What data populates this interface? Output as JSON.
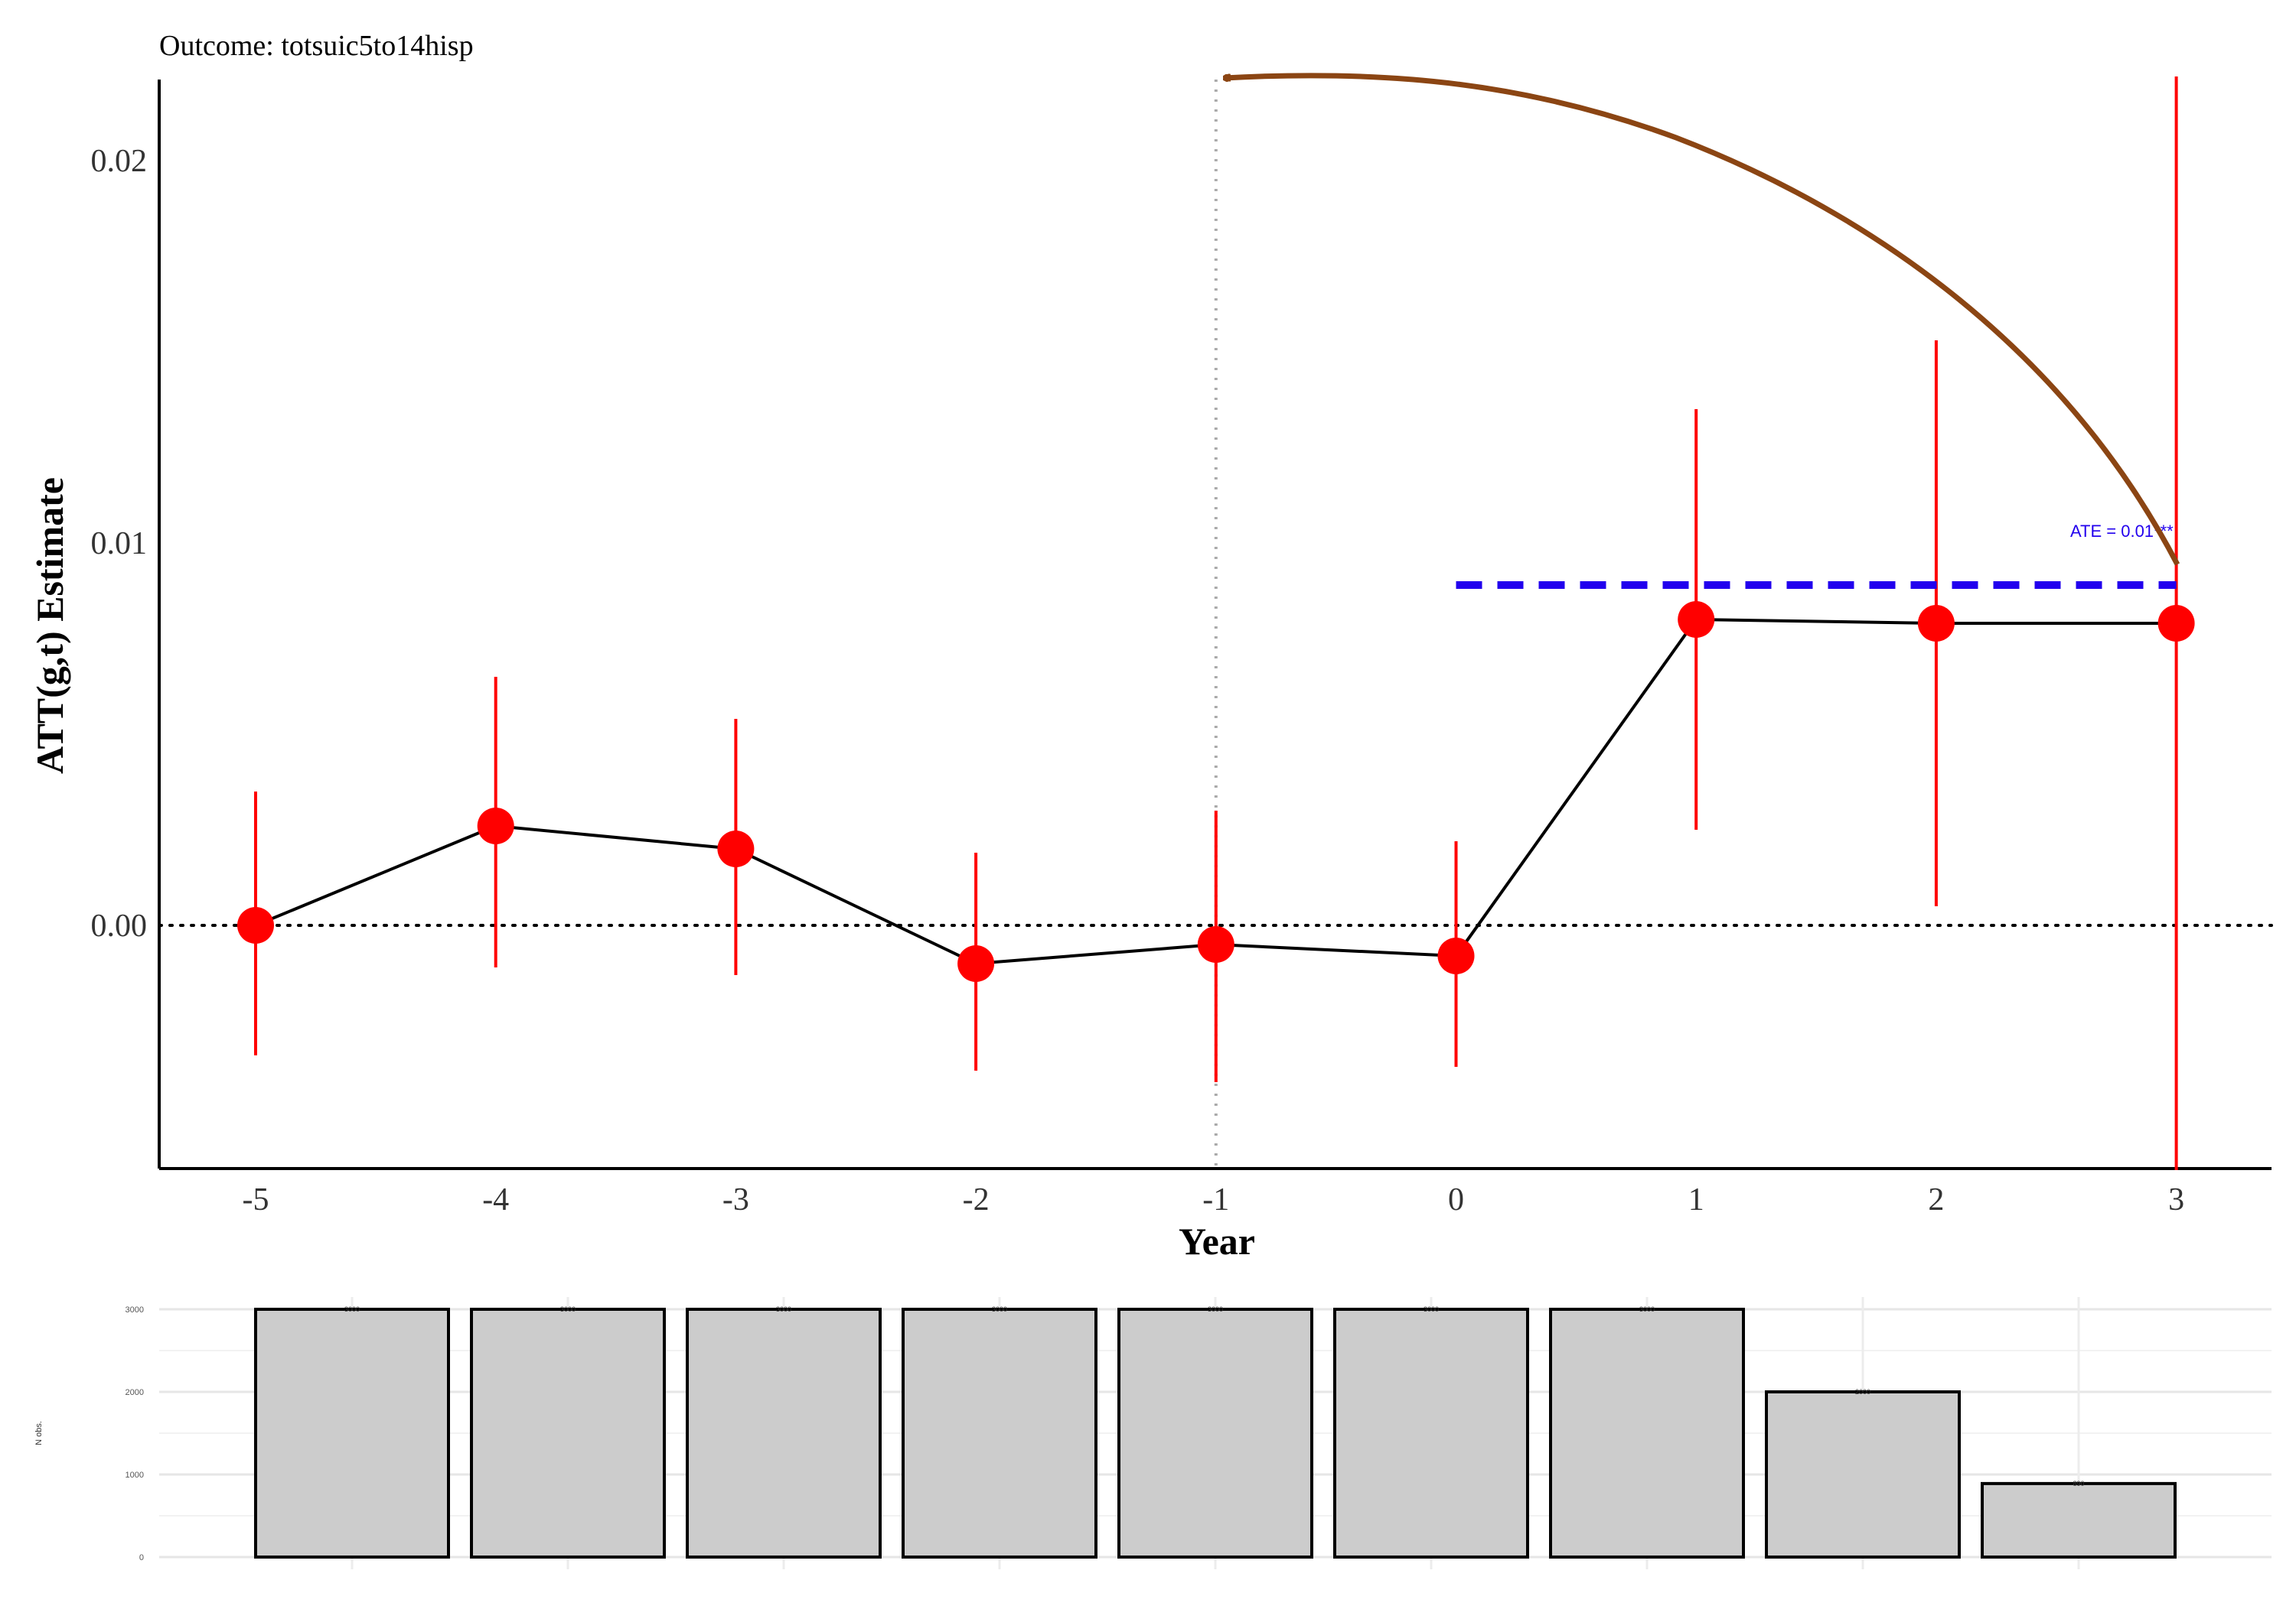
{
  "chart_data": [
    {
      "type": "line",
      "subtitle": "Outcome: totsuic5to14hisp",
      "xlabel": "Year",
      "ylabel": "ATT(g,t) Estimate",
      "x": [
        -5,
        -4,
        -3,
        -2,
        -1,
        0,
        1,
        2,
        3
      ],
      "x_ticks": [
        "-5",
        "-4",
        "-3",
        "-2",
        "-1",
        "0",
        "1",
        "2",
        "3"
      ],
      "y_ticks": [
        "0.00",
        "0.01",
        "0.02"
      ],
      "ylim": [
        -0.0064,
        0.0222
      ],
      "series": [
        {
          "estimate": [
            0.0,
            0.0026,
            0.002,
            -0.001,
            -0.0005,
            -0.0008,
            0.008,
            0.0079,
            0.0079
          ],
          "ci_lower": [
            -0.0034,
            -0.0011,
            -0.0013,
            -0.0038,
            -0.0041,
            -0.0037,
            0.0025,
            0.0005,
            -0.0064
          ],
          "ci_upper": [
            0.0035,
            0.0065,
            0.0054,
            0.0019,
            0.003,
            0.0022,
            0.0135,
            0.0153,
            0.0222
          ]
        }
      ],
      "ate": {
        "label": "ATE = 0.01***",
        "value": 0.0089,
        "x_start": 0,
        "x_end": 3
      },
      "reference_line_x": -1,
      "zero_line_y": 0,
      "colors": {
        "points": "#ff0000",
        "ci": "#ff0000",
        "line": "#000000",
        "ate": "#2200ee",
        "arrow": "#8b4513"
      },
      "grid": false
    },
    {
      "type": "bar",
      "ylabel": "N obs.",
      "x": [
        -5,
        -4,
        -3,
        -2,
        -1,
        0,
        1,
        2,
        3
      ],
      "values": [
        3000,
        3000,
        3000,
        3000,
        3000,
        3000,
        3000,
        2000,
        890
      ],
      "value_labels": [
        "3000",
        "3000",
        "3000",
        "3000",
        "3000",
        "3000",
        "3000",
        "2000",
        "890"
      ],
      "y_ticks": [
        "0",
        "1000",
        "2000",
        "3000"
      ],
      "ylim": [
        0,
        3000
      ],
      "colors": {
        "bar_fill": "#cccccc",
        "bar_stroke": "#000000"
      },
      "grid": true
    }
  ]
}
